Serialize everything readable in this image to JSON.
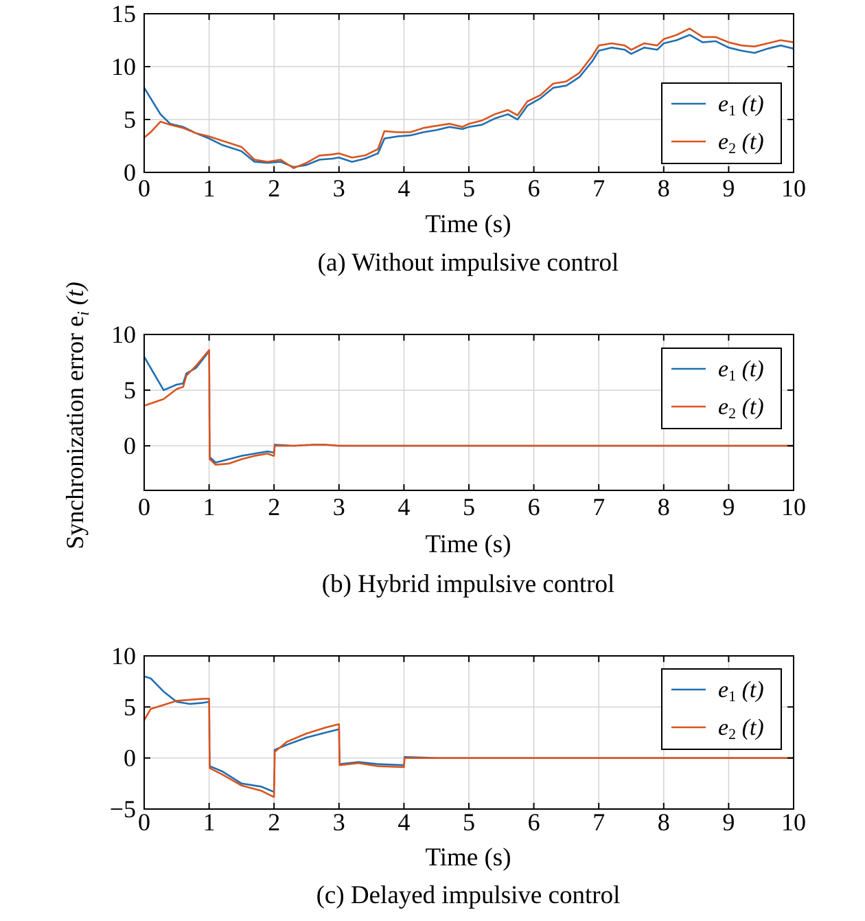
{
  "figure": {
    "shared_ylabel": "Synchronization error e",
    "shared_ylabel_sub": "i",
    "shared_ylabel_arg": "(t)"
  },
  "colors": {
    "e1": "#1f6fb2",
    "e2": "#d9541e",
    "grid": "#d4d4d4"
  },
  "chart_data": [
    {
      "type": "line",
      "caption": "(a) Without impulsive control",
      "xlabel": "Time (s)",
      "xlim": [
        0,
        10
      ],
      "ylim": [
        0,
        15
      ],
      "xticks": [
        0,
        1,
        2,
        3,
        4,
        5,
        6,
        7,
        8,
        9,
        10
      ],
      "yticks": [
        0,
        5,
        10,
        15
      ],
      "grid": true,
      "legend_position": "right",
      "series": [
        {
          "name": "e",
          "sub": "1",
          "arg": "(t)",
          "color": "#1f6fb2",
          "x": [
            0,
            0.1,
            0.25,
            0.4,
            0.6,
            0.8,
            1.0,
            1.2,
            1.5,
            1.7,
            1.9,
            2.1,
            2.3,
            2.5,
            2.7,
            2.9,
            3.0,
            3.2,
            3.4,
            3.6,
            3.7,
            3.9,
            4.1,
            4.3,
            4.5,
            4.7,
            4.9,
            5.0,
            5.2,
            5.4,
            5.6,
            5.75,
            5.9,
            6.1,
            6.3,
            6.5,
            6.7,
            6.9,
            7.0,
            7.2,
            7.4,
            7.5,
            7.7,
            7.9,
            8.0,
            8.2,
            8.4,
            8.6,
            8.8,
            9.0,
            9.2,
            9.4,
            9.6,
            9.8,
            10.0
          ],
          "y": [
            8.0,
            7.0,
            5.5,
            4.6,
            4.3,
            3.7,
            3.2,
            2.6,
            2.0,
            1.0,
            0.9,
            1.0,
            0.5,
            0.7,
            1.2,
            1.3,
            1.4,
            1.0,
            1.3,
            1.8,
            3.2,
            3.4,
            3.5,
            3.8,
            4.0,
            4.3,
            4.1,
            4.3,
            4.5,
            5.1,
            5.5,
            5.0,
            6.3,
            7.0,
            8.0,
            8.2,
            9.0,
            10.5,
            11.5,
            11.8,
            11.6,
            11.2,
            11.8,
            11.6,
            12.2,
            12.5,
            13.0,
            12.3,
            12.4,
            11.8,
            11.5,
            11.3,
            11.7,
            12.0,
            11.7
          ]
        },
        {
          "name": "e",
          "sub": "2",
          "arg": "(t)",
          "color": "#d9541e",
          "x": [
            0,
            0.1,
            0.25,
            0.4,
            0.6,
            0.8,
            1.0,
            1.2,
            1.5,
            1.7,
            1.9,
            2.1,
            2.3,
            2.5,
            2.7,
            2.9,
            3.0,
            3.2,
            3.4,
            3.6,
            3.7,
            3.9,
            4.1,
            4.3,
            4.5,
            4.7,
            4.9,
            5.0,
            5.2,
            5.4,
            5.6,
            5.75,
            5.9,
            6.1,
            6.3,
            6.5,
            6.7,
            6.9,
            7.0,
            7.2,
            7.4,
            7.5,
            7.7,
            7.9,
            8.0,
            8.2,
            8.4,
            8.6,
            8.8,
            9.0,
            9.2,
            9.4,
            9.6,
            9.8,
            10.0
          ],
          "y": [
            3.3,
            3.8,
            4.8,
            4.5,
            4.2,
            3.7,
            3.4,
            3.0,
            2.4,
            1.2,
            1.0,
            1.2,
            0.4,
            0.9,
            1.6,
            1.7,
            1.8,
            1.4,
            1.6,
            2.2,
            3.9,
            3.8,
            3.8,
            4.2,
            4.4,
            4.6,
            4.3,
            4.6,
            4.9,
            5.5,
            5.9,
            5.4,
            6.7,
            7.3,
            8.4,
            8.6,
            9.4,
            11.0,
            12.0,
            12.2,
            12.0,
            11.6,
            12.2,
            12.0,
            12.6,
            13.0,
            13.6,
            12.8,
            12.8,
            12.3,
            12.0,
            11.9,
            12.2,
            12.5,
            12.3
          ]
        }
      ]
    },
    {
      "type": "line",
      "caption": "(b) Hybrid impulsive control",
      "xlabel": "Time (s)",
      "xlim": [
        0,
        10
      ],
      "ylim": [
        -4,
        10
      ],
      "xticks": [
        0,
        1,
        2,
        3,
        4,
        5,
        6,
        7,
        8,
        9,
        10
      ],
      "yticks": [
        0,
        5,
        10
      ],
      "grid": true,
      "legend_position": "top-right",
      "series": [
        {
          "name": "e",
          "sub": "1",
          "arg": "(t)",
          "color": "#1f6fb2",
          "x": [
            0,
            0.15,
            0.3,
            0.5,
            0.6,
            0.65,
            0.8,
            1.0,
            1.01,
            1.1,
            1.3,
            1.5,
            1.7,
            1.9,
            1.99,
            2.0,
            2.01,
            2.3,
            2.6,
            2.8,
            3.0,
            3.01,
            3.5,
            10.0
          ],
          "y": [
            8.0,
            6.5,
            5.0,
            5.5,
            5.6,
            6.5,
            7.0,
            8.5,
            -1.0,
            -1.5,
            -1.2,
            -0.9,
            -0.7,
            -0.5,
            -0.6,
            -0.6,
            0.1,
            0.0,
            0.1,
            0.1,
            0.0,
            0.0,
            0.0,
            0.0
          ]
        },
        {
          "name": "e",
          "sub": "2",
          "arg": "(t)",
          "color": "#d9541e",
          "x": [
            0,
            0.15,
            0.3,
            0.5,
            0.6,
            0.65,
            0.8,
            1.0,
            1.01,
            1.1,
            1.3,
            1.5,
            1.7,
            1.9,
            1.99,
            2.0,
            2.01,
            2.3,
            2.6,
            2.8,
            3.0,
            3.01,
            3.5,
            10.0
          ],
          "y": [
            3.6,
            3.9,
            4.2,
            5.1,
            5.3,
            6.3,
            7.2,
            8.6,
            -1.2,
            -1.7,
            -1.6,
            -1.2,
            -0.9,
            -0.7,
            -0.9,
            -0.9,
            0.0,
            0.0,
            0.1,
            0.1,
            0.0,
            0.0,
            0.0,
            0.0
          ]
        }
      ]
    },
    {
      "type": "line",
      "caption": "(c) Delayed impulsive control",
      "xlabel": "Time (s)",
      "xlim": [
        0,
        10
      ],
      "ylim": [
        -5,
        10
      ],
      "xticks": [
        0,
        1,
        2,
        3,
        4,
        5,
        6,
        7,
        8,
        9,
        10
      ],
      "yticks": [
        -5,
        0,
        5,
        10
      ],
      "grid": true,
      "legend_position": "top-right",
      "series": [
        {
          "name": "e",
          "sub": "1",
          "arg": "(t)",
          "color": "#1f6fb2",
          "x": [
            0,
            0.1,
            0.3,
            0.5,
            0.7,
            0.9,
            1.0,
            1.01,
            1.2,
            1.5,
            1.8,
            1.99,
            2.0,
            2.01,
            2.2,
            2.5,
            2.8,
            2.99,
            3.0,
            3.01,
            3.3,
            3.6,
            3.99,
            4.0,
            4.01,
            4.5,
            5.0,
            10.0
          ],
          "y": [
            8.0,
            7.8,
            6.5,
            5.5,
            5.3,
            5.4,
            5.5,
            -0.8,
            -1.3,
            -2.5,
            -2.8,
            -3.3,
            -3.3,
            0.8,
            1.3,
            2.0,
            2.5,
            2.8,
            2.8,
            -0.6,
            -0.4,
            -0.6,
            -0.7,
            -0.7,
            0.1,
            0.0,
            0.0,
            0.0
          ]
        },
        {
          "name": "e",
          "sub": "2",
          "arg": "(t)",
          "color": "#d9541e",
          "x": [
            0,
            0.1,
            0.3,
            0.5,
            0.7,
            0.9,
            1.0,
            1.01,
            1.2,
            1.5,
            1.8,
            1.99,
            2.0,
            2.01,
            2.2,
            2.5,
            2.8,
            2.99,
            3.0,
            3.01,
            3.3,
            3.6,
            3.99,
            4.0,
            4.01,
            4.5,
            5.0,
            10.0
          ],
          "y": [
            3.7,
            4.8,
            5.2,
            5.6,
            5.7,
            5.8,
            5.8,
            -1.0,
            -1.6,
            -2.7,
            -3.2,
            -3.8,
            -3.8,
            0.6,
            1.6,
            2.4,
            3.0,
            3.3,
            3.3,
            -0.7,
            -0.5,
            -0.8,
            -0.9,
            -0.9,
            0.0,
            0.0,
            0.0,
            0.0
          ]
        }
      ]
    }
  ]
}
